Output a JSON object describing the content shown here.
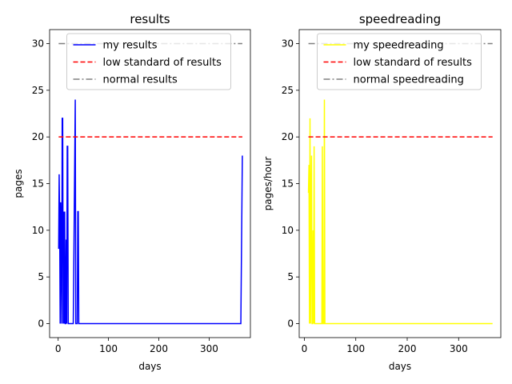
{
  "chart_data": [
    {
      "type": "line",
      "title": "results",
      "xlabel": "days",
      "ylabel": "pages",
      "xlim": [
        -17,
        382
      ],
      "ylim": [
        -1.5,
        31.5
      ],
      "xticks": [
        0,
        100,
        200,
        300
      ],
      "yticks": [
        0,
        5,
        10,
        15,
        20,
        25,
        30
      ],
      "grid": false,
      "legend_position": "top-center",
      "series": [
        {
          "name": "my results",
          "color": "#0000ff",
          "style": "solid",
          "x": [
            1,
            2,
            3,
            4,
            5,
            6,
            7,
            8,
            9,
            10,
            11,
            12,
            13,
            14,
            15,
            16,
            17,
            18,
            19,
            20,
            21,
            22,
            24,
            30,
            34,
            35,
            36,
            38,
            39,
            40,
            41,
            42,
            60,
            100,
            200,
            300,
            363,
            366
          ],
          "y": [
            8,
            16,
            11,
            0,
            13,
            10,
            0,
            22,
            22,
            0,
            12,
            0,
            12,
            0,
            0,
            9,
            0,
            19,
            19,
            0,
            0,
            0,
            0,
            0,
            24,
            0,
            0,
            0,
            12,
            12,
            0,
            0,
            0,
            0,
            0,
            0,
            0,
            18
          ]
        },
        {
          "name": "low standard of results",
          "color": "#ff0000",
          "style": "dashed",
          "x": [
            1,
            366
          ],
          "y": [
            20,
            20
          ]
        },
        {
          "name": "normal results",
          "color": "#808080",
          "style": "dashdot",
          "x": [
            1,
            366
          ],
          "y": [
            30,
            30
          ]
        }
      ]
    },
    {
      "type": "line",
      "title": "speedreading",
      "xlabel": "days",
      "ylabel": "pages/hour",
      "xlim": [
        -10,
        382
      ],
      "ylim": [
        -1.5,
        31.5
      ],
      "xticks": [
        0,
        100,
        200,
        300
      ],
      "yticks": [
        0,
        5,
        10,
        15,
        20,
        25,
        30
      ],
      "grid": false,
      "legend_position": "top-center",
      "series": [
        {
          "name": "my speedreading",
          "color": "#ffff00",
          "style": "solid",
          "x": [
            8,
            9,
            10,
            11,
            12,
            13,
            14,
            15,
            16,
            17,
            18,
            19,
            20,
            21,
            22,
            24,
            30,
            34,
            35,
            36,
            38,
            39,
            40,
            41,
            42,
            60,
            100,
            200,
            300,
            366
          ],
          "y": [
            14,
            17,
            0,
            22,
            0,
            13,
            18,
            0,
            0,
            10,
            0,
            19,
            0,
            0,
            0,
            0,
            0,
            0,
            19,
            0,
            0,
            24,
            0,
            0,
            0,
            0,
            0,
            0,
            0,
            0
          ]
        },
        {
          "name": "low standard of results",
          "color": "#ff0000",
          "style": "dashed",
          "x": [
            8,
            366
          ],
          "y": [
            20,
            20
          ]
        },
        {
          "name": "normal speedreading",
          "color": "#808080",
          "style": "dashdot",
          "x": [
            8,
            366
          ],
          "y": [
            30,
            30
          ]
        }
      ]
    }
  ]
}
